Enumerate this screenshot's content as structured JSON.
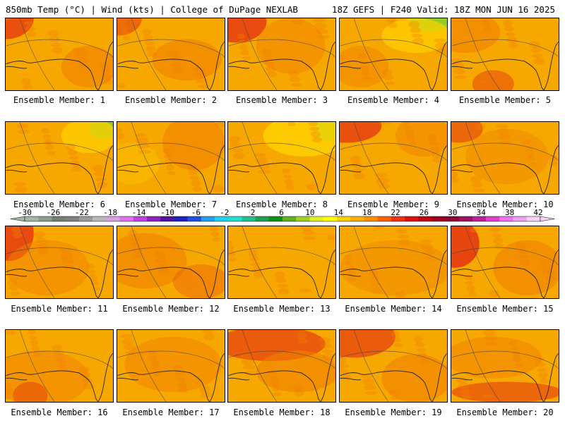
{
  "header": {
    "left": "850mb Temp (°C) | Wind (kts) | College of DuPage NEXLAB",
    "right": "18Z GEFS | F240 Valid: 18Z MON JUN 16 2025"
  },
  "members": [
    "Ensemble Member: 1",
    "Ensemble Member: 2",
    "Ensemble Member: 3",
    "Ensemble Member: 4",
    "Ensemble Member: 5",
    "Ensemble Member: 6",
    "Ensemble Member: 7",
    "Ensemble Member: 8",
    "Ensemble Member: 9",
    "Ensemble Member: 10",
    "Ensemble Member: 11",
    "Ensemble Member: 12",
    "Ensemble Member: 13",
    "Ensemble Member: 14",
    "Ensemble Member: 15",
    "Ensemble Member: 16",
    "Ensemble Member: 17",
    "Ensemble Member: 18",
    "Ensemble Member: 19",
    "Ensemble Member: 20"
  ],
  "colorbar": {
    "tick_labels": [
      "-30",
      "-26",
      "-22",
      "-18",
      "-14",
      "-10",
      "-6",
      "-2",
      "2",
      "6",
      "10",
      "14",
      "18",
      "22",
      "26",
      "30",
      "34",
      "38",
      "42"
    ],
    "colors": [
      "#a3b5a3",
      "#8a9c8a",
      "#6f816f",
      "#808080",
      "#9a9a9a",
      "#b8b8b8",
      "#d7a0e0",
      "#e070f0",
      "#c040e0",
      "#9020c0",
      "#5010a0",
      "#2020c0",
      "#2050e0",
      "#20a0f0",
      "#20d0f0",
      "#20e0d0",
      "#20c090",
      "#20a050",
      "#109010",
      "#60b020",
      "#a0d020",
      "#e0f020",
      "#ffff00",
      "#ffd000",
      "#ffb000",
      "#ff9000",
      "#ff6000",
      "#f03010",
      "#e01010",
      "#c00010",
      "#a00020",
      "#900030",
      "#a01060",
      "#c020a0",
      "#e040d0",
      "#f070f0",
      "#f0a0f0",
      "#f8d0f8"
    ]
  },
  "theme": {
    "base_color": "#f6a800",
    "warm_color": "#f08000",
    "hot_color": "#e63a10",
    "cool_color": "#ffd200",
    "green_color": "#8ccd2a"
  }
}
